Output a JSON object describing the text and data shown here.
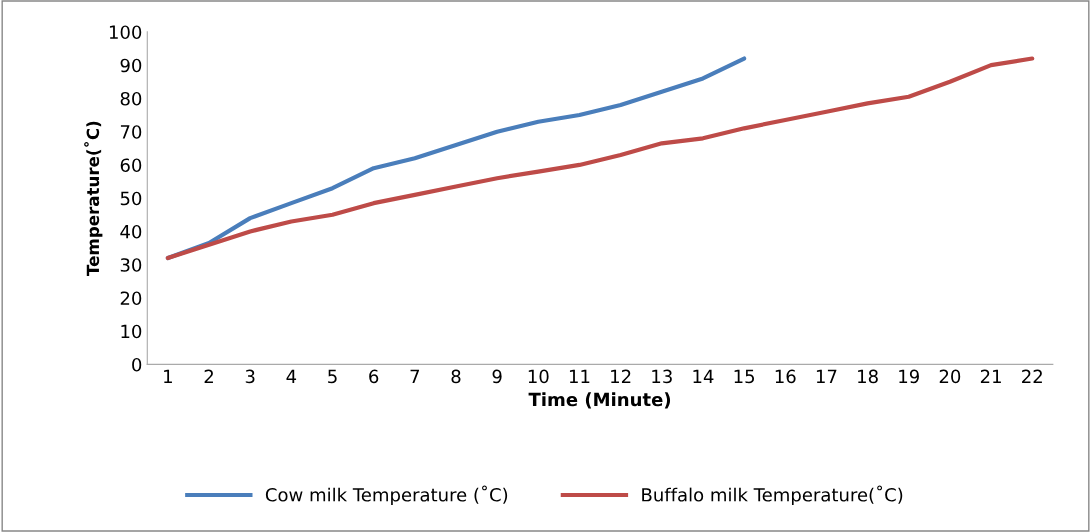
{
  "chart_data": {
    "type": "line",
    "xlabel": "Time (Minute)",
    "ylabel": "Temperature(˚C)",
    "categories": [
      "1",
      "2",
      "3",
      "4",
      "5",
      "6",
      "7",
      "8",
      "9",
      "10",
      "11",
      "12",
      "13",
      "14",
      "15",
      "16",
      "17",
      "18",
      "19",
      "20",
      "21",
      "22"
    ],
    "series": [
      {
        "name": "Cow milk Temperature (˚C)",
        "color": "#4a7ebb",
        "values": [
          32,
          36.5,
          44,
          48.5,
          53,
          59,
          62,
          66,
          70,
          73,
          75,
          78,
          82,
          86,
          92,
          null,
          null,
          null,
          null,
          null,
          null,
          null
        ]
      },
      {
        "name": "Buffalo milk Temperature(˚C)",
        "color": "#be4b48",
        "values": [
          32,
          36,
          40,
          43,
          45,
          48.5,
          51,
          53.5,
          56,
          58,
          60,
          63,
          66.5,
          68,
          71,
          73.5,
          76,
          78.5,
          80.5,
          85,
          90,
          92
        ]
      }
    ],
    "ylim": [
      0,
      100
    ],
    "yticks": [
      0,
      10,
      20,
      30,
      40,
      50,
      60,
      70,
      80,
      90,
      100
    ],
    "grid": false,
    "legend": "bottom",
    "marker": "none",
    "line_style": "solid"
  }
}
